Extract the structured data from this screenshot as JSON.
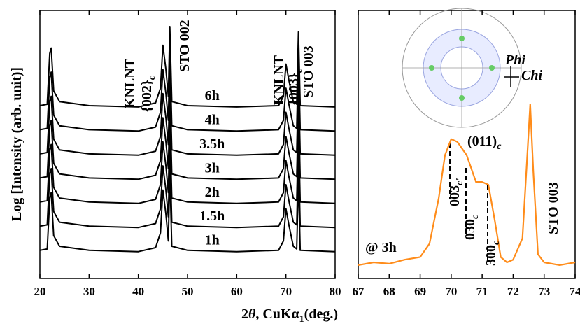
{
  "chart_data": [
    {
      "type": "line",
      "ylabel": "Log [Intensity (arb. unit)]",
      "xlabel": {
        "pre": "2",
        "theta": "θ",
        "mid": ", CuKα",
        "sub": "1",
        "post": "(deg.)"
      },
      "xlim": [
        20,
        80
      ],
      "xticks": [
        20,
        30,
        40,
        50,
        60,
        70,
        80
      ],
      "ylim": [
        0,
        10
      ],
      "annotations": [
        {
          "text": "KNLNT"
        },
        {
          "text": "{002}",
          "sub": "c"
        },
        {
          "text": "STO 002"
        },
        {
          "text": "KNLNT"
        },
        {
          "text": "{003}",
          "sub": "c"
        },
        {
          "text": "STO 003"
        }
      ],
      "x": [
        20,
        21.5,
        22,
        22.3,
        22.8,
        24,
        30,
        40,
        43.5,
        44.5,
        45,
        45.6,
        46.1,
        46.4,
        46.8,
        50,
        60,
        68.5,
        69.5,
        70,
        70.6,
        71.5,
        72.2,
        72.55,
        72.9,
        80
      ],
      "series": [
        {
          "name": "1h",
          "color": "#000000",
          "values": [
            1.05,
            1.1,
            3.0,
            3.2,
            1.6,
            1.2,
            1.05,
            1.0,
            1.15,
            1.7,
            3.3,
            2.4,
            1.4,
            4.0,
            1.2,
            1.05,
            1.0,
            1.05,
            1.4,
            2.6,
            2.0,
            1.2,
            1.1,
            3.8,
            1.05,
            1.0
          ]
        },
        {
          "name": "1.5h",
          "color": "#000000",
          "values": [
            1.95,
            2.0,
            3.9,
            4.1,
            2.5,
            2.1,
            1.95,
            1.9,
            2.05,
            2.6,
            4.2,
            3.3,
            2.3,
            4.9,
            2.1,
            1.95,
            1.9,
            1.95,
            2.3,
            3.5,
            2.9,
            2.1,
            2.0,
            4.7,
            1.95,
            1.9
          ]
        },
        {
          "name": "2h",
          "color": "#000000",
          "values": [
            2.85,
            2.9,
            4.8,
            5.0,
            3.4,
            3.0,
            2.85,
            2.8,
            2.95,
            3.5,
            5.1,
            4.2,
            3.2,
            5.8,
            3.0,
            2.85,
            2.8,
            2.85,
            3.2,
            4.4,
            3.8,
            3.0,
            2.9,
            5.6,
            2.85,
            2.8
          ]
        },
        {
          "name": "3h",
          "color": "#000000",
          "values": [
            3.75,
            3.8,
            5.7,
            5.9,
            4.3,
            3.9,
            3.75,
            3.7,
            3.85,
            4.4,
            6.0,
            5.1,
            4.1,
            6.7,
            3.9,
            3.75,
            3.7,
            3.75,
            4.1,
            5.3,
            4.7,
            3.9,
            3.8,
            6.5,
            3.75,
            3.7
          ]
        },
        {
          "name": "3.5h",
          "color": "#000000",
          "values": [
            4.65,
            4.7,
            6.6,
            6.8,
            5.2,
            4.8,
            4.65,
            4.6,
            4.75,
            5.3,
            6.9,
            6.0,
            5.0,
            7.6,
            4.8,
            4.65,
            4.6,
            4.65,
            5.0,
            6.2,
            5.6,
            4.8,
            4.7,
            7.4,
            4.65,
            4.6
          ]
        },
        {
          "name": "4h",
          "color": "#000000",
          "values": [
            5.55,
            5.6,
            7.5,
            7.7,
            6.1,
            5.7,
            5.55,
            5.5,
            5.65,
            6.2,
            7.8,
            6.9,
            5.9,
            8.5,
            5.7,
            5.55,
            5.5,
            5.55,
            5.9,
            7.1,
            6.5,
            5.7,
            5.6,
            8.3,
            5.55,
            5.5
          ]
        },
        {
          "name": "6h",
          "color": "#000000",
          "values": [
            6.45,
            6.5,
            8.4,
            8.6,
            7.0,
            6.6,
            6.45,
            6.4,
            6.55,
            7.1,
            8.7,
            7.8,
            6.8,
            9.4,
            6.6,
            6.45,
            6.4,
            6.45,
            6.8,
            8.0,
            7.4,
            6.6,
            6.5,
            9.2,
            6.45,
            6.4
          ]
        }
      ]
    },
    {
      "type": "line",
      "xlim": [
        67,
        74
      ],
      "xticks": [
        67,
        68,
        69,
        70,
        71,
        72,
        73,
        74
      ],
      "ylim": [
        0,
        10
      ],
      "annotations": [
        {
          "text": "003",
          "sub": "c'"
        },
        {
          "text": "030",
          "sub": "c"
        },
        {
          "text": "300",
          "sub": "c"
        },
        {
          "text": "STO 003"
        },
        {
          "text": "@ 3h"
        },
        {
          "text": "(011)",
          "sub": "c"
        },
        {
          "text": "Phi"
        },
        {
          "text": "Chi"
        }
      ],
      "x": [
        67,
        67.5,
        68,
        68.5,
        69,
        69.3,
        69.6,
        69.8,
        70,
        70.2,
        70.5,
        70.8,
        71,
        71.2,
        71.4,
        71.6,
        71.8,
        72,
        72.3,
        72.45,
        72.55,
        72.65,
        72.8,
        73,
        73.5,
        74
      ],
      "series": [
        {
          "name": null,
          "color": "#ff8c1a",
          "values": [
            0.5,
            0.6,
            0.55,
            0.7,
            0.8,
            1.3,
            3.0,
            4.6,
            5.2,
            5.1,
            4.6,
            3.6,
            3.6,
            3.5,
            2.2,
            0.8,
            0.6,
            0.7,
            1.5,
            4.5,
            6.5,
            4.0,
            0.9,
            0.6,
            0.5,
            0.6
          ]
        }
      ]
    }
  ]
}
